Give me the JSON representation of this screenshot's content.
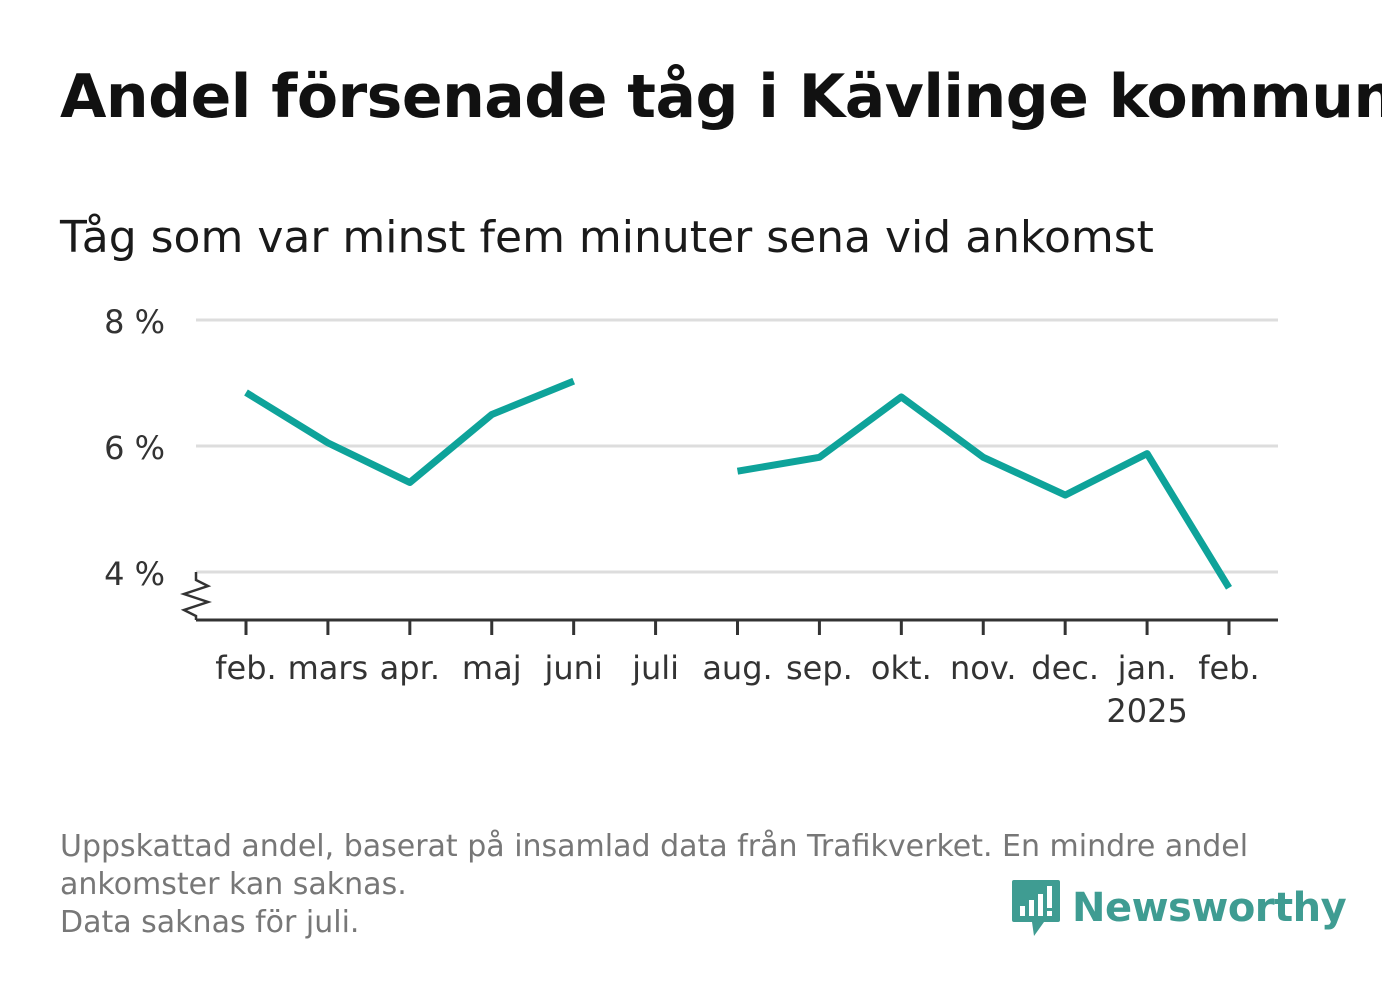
{
  "title": "Andel försenade tåg i Kävlinge kommun",
  "subtitle": "Tåg som var minst fem minuter sena vid ankomst",
  "notes": [
    "Uppskattad andel, baserat på insamlad data från Trafikverket. En mindre andel",
    "ankomster kan saknas.",
    "Data saknas för juli."
  ],
  "brand": {
    "name": "Newsworthy",
    "color": "#3f9c92"
  },
  "chart_data": {
    "type": "line",
    "categories": [
      "feb.",
      "mars",
      "apr.",
      "maj",
      "juni",
      "juli",
      "aug.",
      "sep.",
      "okt.",
      "nov.",
      "dec.",
      "jan.",
      "feb."
    ],
    "year_label": {
      "text": "2025",
      "category_index": 11
    },
    "values": [
      6.85,
      6.05,
      5.42,
      6.5,
      7.03,
      null,
      5.6,
      5.82,
      6.78,
      5.82,
      5.22,
      5.88,
      3.75
    ],
    "ylim": [
      3.2,
      8.0
    ],
    "yticks": [
      4,
      6,
      8
    ],
    "ytick_labels": [
      "4 %",
      "6 %",
      "8 %"
    ],
    "axis_break": true,
    "grid": true,
    "line_color": "#0ea39a",
    "xlabel": "",
    "ylabel": ""
  }
}
